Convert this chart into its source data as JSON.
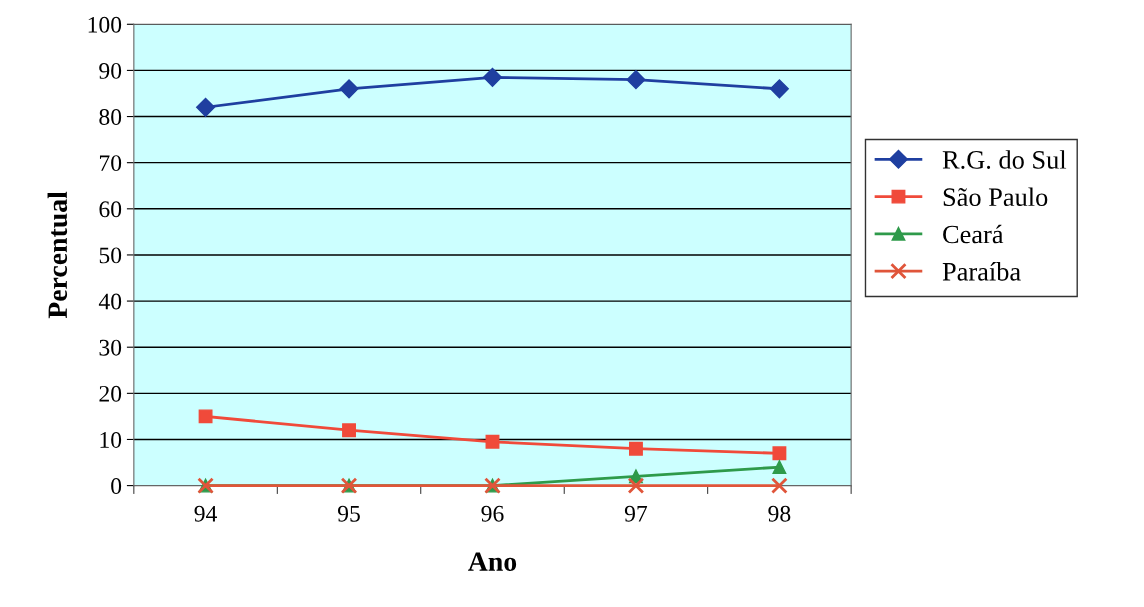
{
  "chart_data": {
    "type": "line",
    "xlabel": "Ano",
    "ylabel": "Percentual",
    "categories": [
      "94",
      "95",
      "96",
      "97",
      "98"
    ],
    "series": [
      {
        "name": "R.G. do Sul",
        "color": "#1f3fa0",
        "marker": "diamond",
        "values": [
          82,
          86,
          88.5,
          88,
          86
        ]
      },
      {
        "name": "São Paulo",
        "color": "#f04a3a",
        "marker": "square",
        "values": [
          15,
          12,
          9.5,
          8,
          7
        ]
      },
      {
        "name": "Ceará",
        "color": "#2e9a4a",
        "marker": "triangle",
        "values": [
          0,
          0,
          0,
          2,
          4
        ]
      },
      {
        "name": "Paraíba",
        "color": "#e0553a",
        "marker": "cross",
        "values": [
          0,
          0,
          0,
          0,
          0
        ]
      }
    ],
    "ylim": [
      0,
      100
    ],
    "yticks": [
      0,
      10,
      20,
      30,
      40,
      50,
      60,
      70,
      80,
      90,
      100
    ],
    "grid": "y",
    "legend": "right",
    "line_style": "solid"
  }
}
